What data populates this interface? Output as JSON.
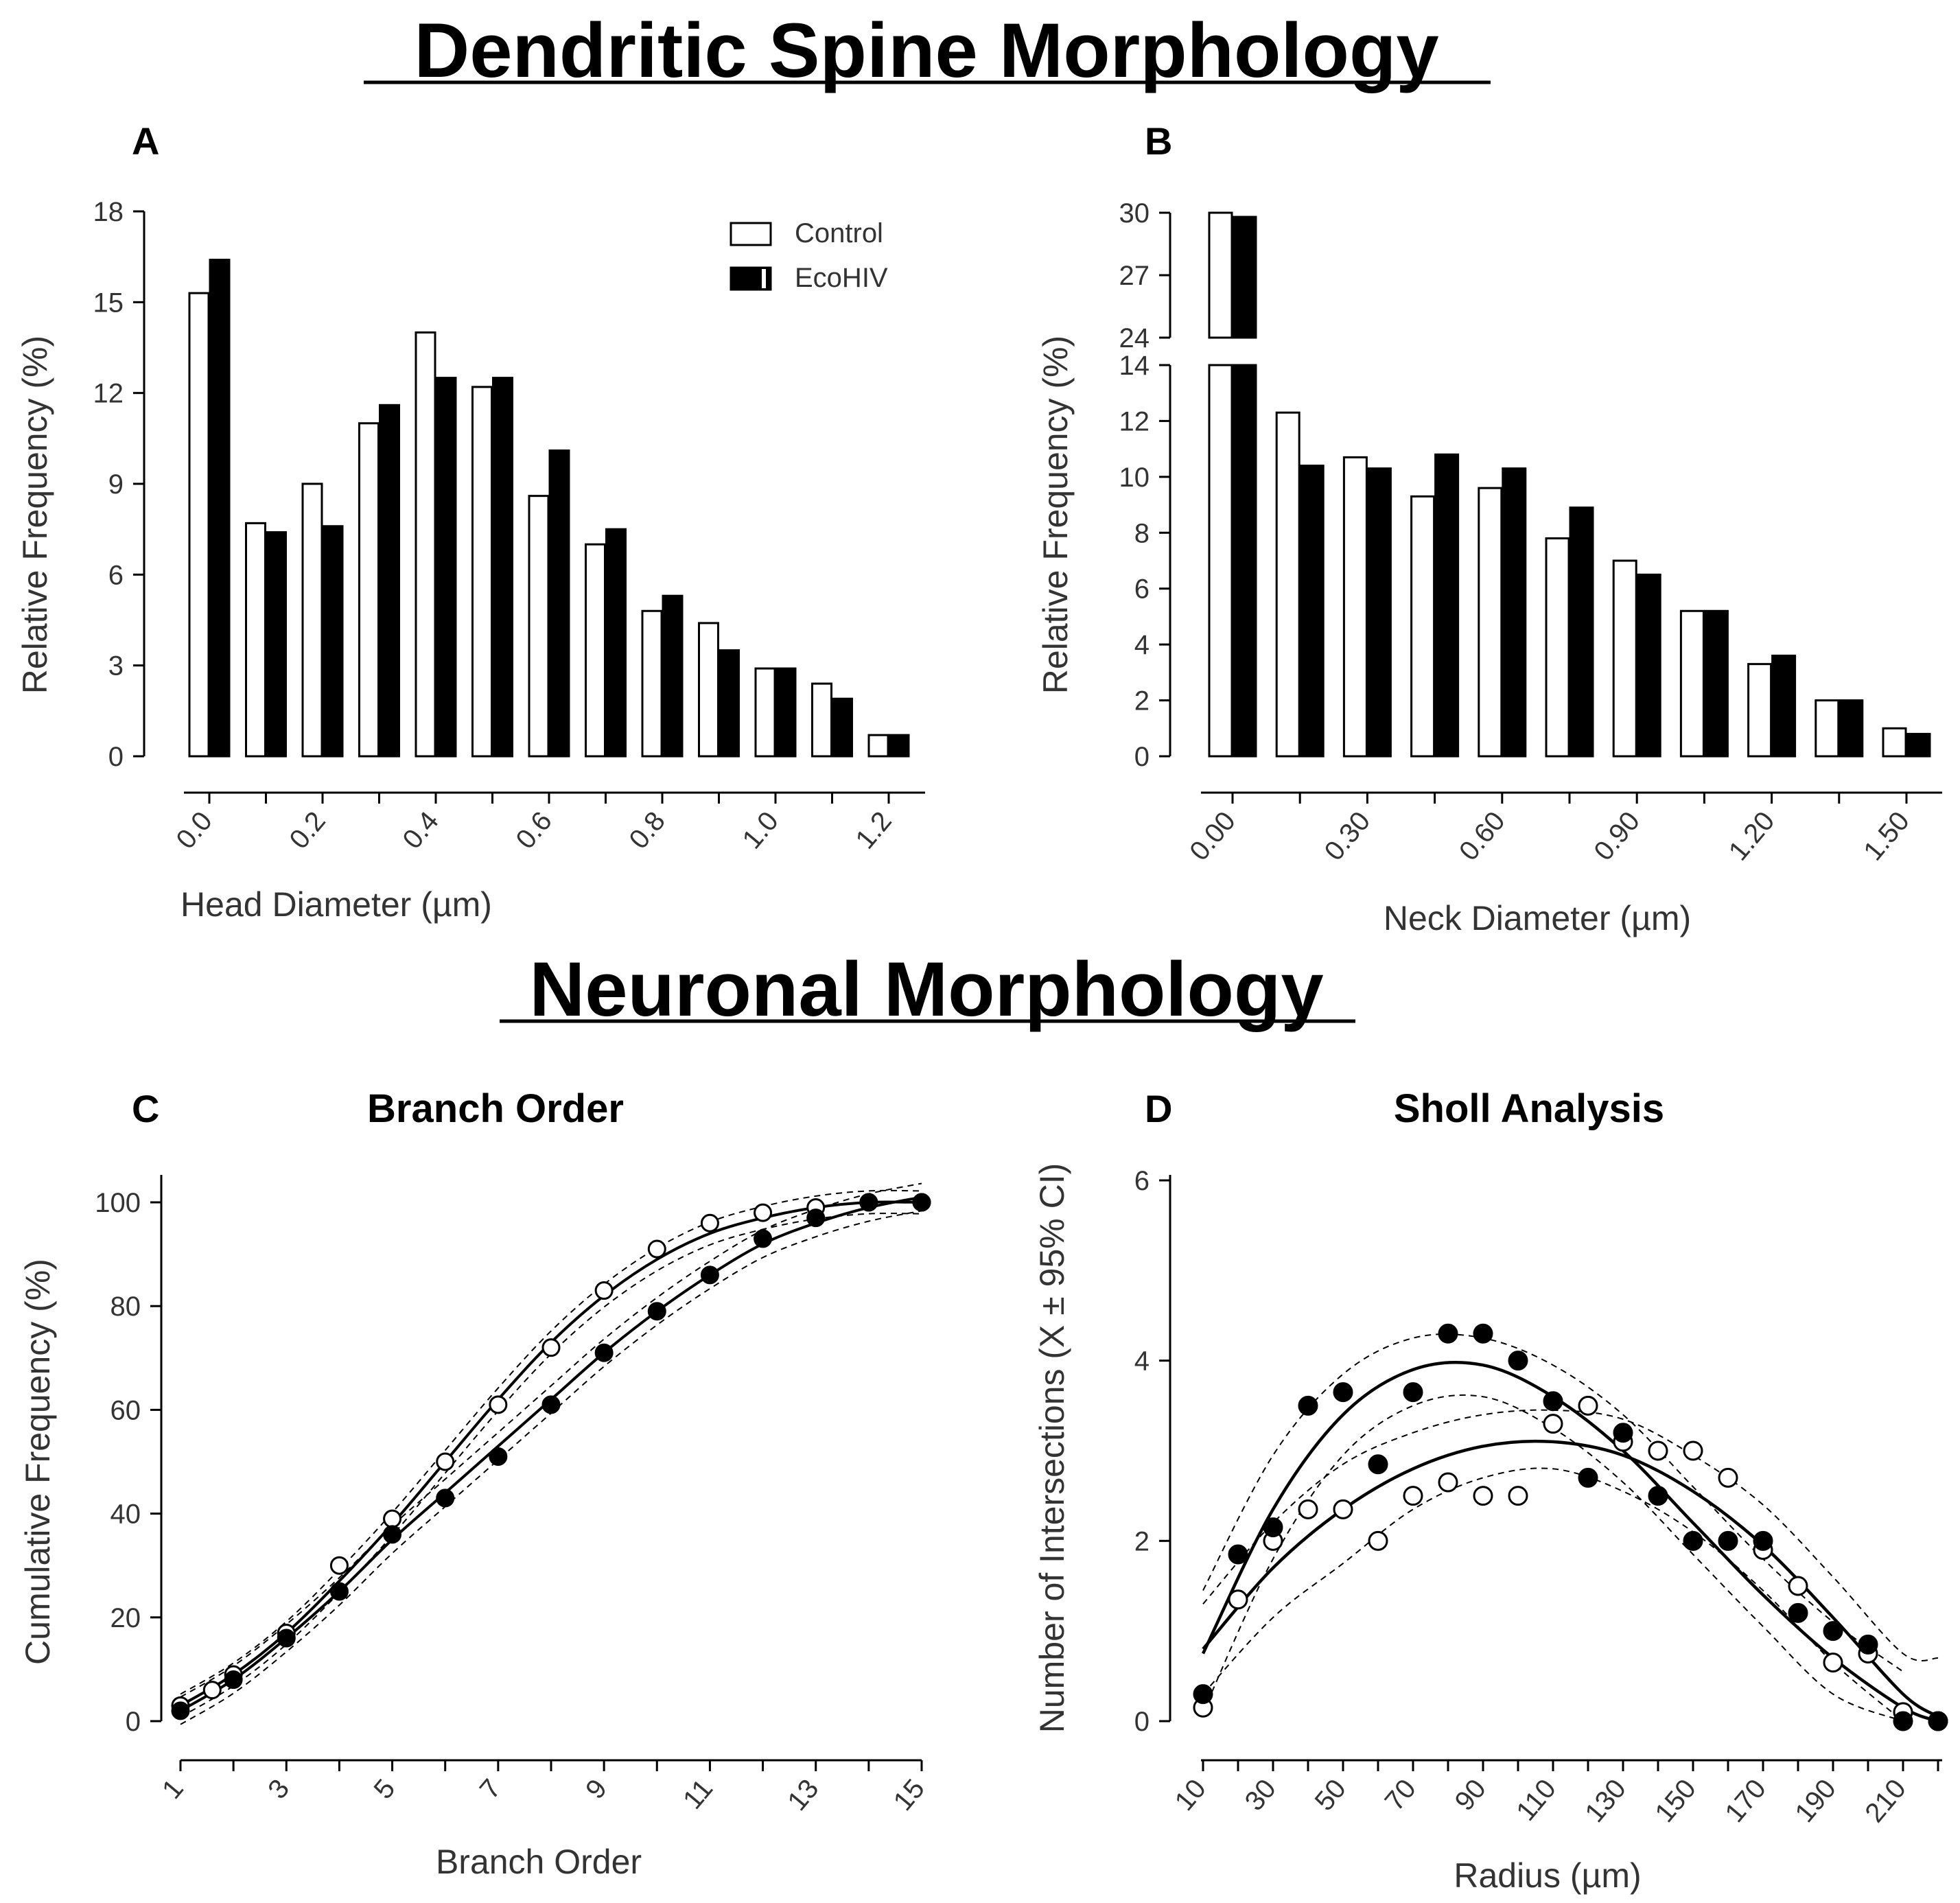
{
  "titles": {
    "spine": "Dendritic  Spine  Morphology",
    "neuronal": "Neuronal  Morphology"
  },
  "legend": {
    "control": "Control",
    "ecohiv": "EcoHIV"
  },
  "colors": {
    "control_fill": "#ffffff",
    "ecohiv_fill": "#000000",
    "stroke": "#000000"
  },
  "chart_data": [
    {
      "id": "A",
      "type": "bar",
      "letter": "A",
      "xlabel": "Head Diameter (µm)",
      "ylabel": "Relative  Frequency (%)",
      "ylim": [
        0,
        18
      ],
      "yticks": [
        0,
        3,
        6,
        9,
        12,
        15,
        18
      ],
      "categories": [
        "0.0",
        "0.1",
        "0.2",
        "0.3",
        "0.4",
        "0.5",
        "0.6",
        "0.7",
        "0.8",
        "0.9",
        "1.0",
        "1.1",
        "1.2"
      ],
      "xtick_labels": [
        "0.0",
        "",
        "0.2",
        "",
        "0.4",
        "",
        "0.6",
        "",
        "0.8",
        "",
        "1.0",
        "",
        "1.2"
      ],
      "series": [
        {
          "name": "Control",
          "values": [
            15.3,
            7.7,
            9.0,
            11.0,
            14.0,
            12.2,
            8.6,
            7.0,
            4.8,
            4.4,
            2.9,
            2.4,
            0.7
          ]
        },
        {
          "name": "EcoHIV",
          "values": [
            16.4,
            7.4,
            7.6,
            11.6,
            12.5,
            12.5,
            10.1,
            7.5,
            5.3,
            3.5,
            2.9,
            1.9,
            0.7
          ]
        }
      ]
    },
    {
      "id": "B",
      "type": "bar",
      "letter": "B",
      "xlabel": "Neck  Diameter  (µm)",
      "ylabel": "Relative  Frequency  (%)",
      "ylim_lower": [
        0,
        14
      ],
      "ylim_upper": [
        24,
        30
      ],
      "yticks_lower": [
        0,
        2,
        4,
        6,
        8,
        10,
        12,
        14
      ],
      "yticks_upper": [
        24,
        27,
        30
      ],
      "categories": [
        "0.00",
        "0.15",
        "0.30",
        "0.45",
        "0.60",
        "0.75",
        "0.90",
        "1.05",
        "1.20",
        "1.35",
        "1.50"
      ],
      "xtick_labels": [
        "0.00",
        "",
        "0.30",
        "",
        "0.60",
        "",
        "0.90",
        "",
        "1.20",
        "",
        "1.50"
      ],
      "series": [
        {
          "name": "Control",
          "values": [
            30.0,
            12.3,
            10.7,
            9.3,
            9.6,
            7.8,
            7.0,
            5.2,
            3.3,
            2.0,
            1.0
          ]
        },
        {
          "name": "EcoHIV",
          "values": [
            29.8,
            10.4,
            10.3,
            10.8,
            10.3,
            8.9,
            6.5,
            5.2,
            3.6,
            2.0,
            0.8
          ]
        }
      ]
    },
    {
      "id": "C",
      "type": "scatter",
      "letter": "C",
      "title": "Branch Order",
      "xlabel": "Branch  Order",
      "ylabel": "Cumulative Frequency (%)",
      "xlim": [
        1,
        15
      ],
      "ylim": [
        0,
        100
      ],
      "xticks": [
        1,
        3,
        5,
        7,
        9,
        11,
        13,
        15
      ],
      "yticks": [
        0,
        20,
        40,
        60,
        80,
        100
      ],
      "series": [
        {
          "name": "Control",
          "marker": "open",
          "x": [
            1,
            1.6,
            2,
            3,
            4,
            5,
            6,
            7,
            8,
            9,
            10,
            11,
            12,
            13,
            14,
            15
          ],
          "y": [
            3,
            6,
            9,
            17,
            30,
            39,
            50,
            61,
            72,
            83,
            91,
            96,
            98,
            99,
            100,
            100
          ]
        },
        {
          "name": "EcoHIV",
          "marker": "filled",
          "x": [
            1,
            2,
            3,
            4,
            5,
            6,
            7,
            8,
            9,
            10,
            11,
            12,
            13,
            14,
            15
          ],
          "y": [
            2,
            8,
            16,
            25,
            36,
            43,
            51,
            61,
            71,
            79,
            86,
            93,
            97,
            100,
            100
          ]
        }
      ],
      "fits": [
        {
          "name": "Control fit",
          "x": [
            1,
            2,
            3,
            4,
            5,
            6,
            7,
            8,
            9,
            10,
            11,
            12,
            13,
            14,
            15
          ],
          "y": [
            3,
            9,
            17,
            27,
            38,
            50,
            62,
            73,
            82,
            89,
            94,
            97,
            99,
            100,
            100
          ]
        },
        {
          "name": "EcoHIV fit",
          "x": [
            1,
            2,
            3,
            4,
            5,
            6,
            7,
            8,
            9,
            10,
            11,
            12,
            13,
            14,
            15
          ],
          "y": [
            2,
            8,
            16,
            25,
            35,
            44,
            53,
            62,
            71,
            79,
            86,
            92,
            96,
            99,
            101
          ]
        }
      ]
    },
    {
      "id": "D",
      "type": "scatter",
      "letter": "D",
      "title": "Sholl  Analysis",
      "xlabel": "Radius (µm)",
      "ylabel": "Number of Intersections (X ± 95% CI)",
      "xlim": [
        10,
        220
      ],
      "ylim": [
        0,
        6
      ],
      "xticks": [
        10,
        30,
        50,
        70,
        90,
        110,
        130,
        150,
        170,
        190,
        210
      ],
      "yticks": [
        0,
        2,
        4,
        6
      ],
      "series": [
        {
          "name": "Control",
          "marker": "open",
          "x": [
            10,
            20,
            30,
            40,
            50,
            60,
            70,
            80,
            90,
            100,
            110,
            120,
            130,
            140,
            150,
            160,
            170,
            180,
            190,
            200,
            210,
            220
          ],
          "y": [
            0.15,
            1.35,
            2.0,
            2.35,
            2.35,
            2.0,
            2.5,
            2.65,
            2.5,
            2.5,
            3.3,
            3.5,
            3.1,
            3.0,
            3.0,
            2.7,
            1.9,
            1.5,
            0.65,
            0.75,
            0.1,
            0.0
          ]
        },
        {
          "name": "EcoHIV",
          "marker": "filled",
          "x": [
            10,
            20,
            30,
            40,
            50,
            60,
            70,
            80,
            90,
            100,
            110,
            120,
            130,
            140,
            150,
            160,
            170,
            180,
            190,
            200,
            210,
            220
          ],
          "y": [
            0.3,
            1.85,
            2.15,
            3.5,
            3.65,
            2.85,
            3.65,
            4.3,
            4.3,
            4.0,
            3.55,
            2.7,
            3.2,
            2.5,
            2.0,
            2.0,
            2.0,
            1.2,
            1.0,
            0.85,
            0.0,
            0.0
          ]
        }
      ],
      "fits": [
        {
          "name": "EcoHIV fit",
          "x": [
            10,
            30,
            50,
            70,
            90,
            110,
            130,
            150,
            170,
            190,
            210,
            220
          ],
          "y": [
            0.75,
            2.35,
            3.4,
            3.9,
            3.95,
            3.6,
            3.0,
            2.2,
            1.4,
            0.7,
            0.15,
            0.0
          ]
        },
        {
          "name": "Control fit",
          "x": [
            10,
            30,
            50,
            70,
            90,
            110,
            130,
            150,
            170,
            190,
            210,
            220
          ],
          "y": [
            0.8,
            1.7,
            2.35,
            2.8,
            3.05,
            3.1,
            2.95,
            2.55,
            1.95,
            1.15,
            0.3,
            0.05
          ]
        }
      ],
      "ci_bands": [
        {
          "name": "EcoHIV CI upper",
          "x": [
            10,
            30,
            50,
            70,
            90,
            110,
            130,
            150,
            170,
            190,
            210
          ],
          "y": [
            1.45,
            2.95,
            3.85,
            4.25,
            4.25,
            3.95,
            3.4,
            2.6,
            1.8,
            1.1,
            0.55
          ]
        },
        {
          "name": "EcoHIV CI lower",
          "x": [
            10,
            30,
            50,
            70,
            90,
            110,
            130,
            150,
            170,
            190,
            210
          ],
          "y": [
            0.1,
            1.8,
            2.95,
            3.5,
            3.6,
            3.25,
            2.65,
            1.85,
            1.05,
            0.3,
            0.0
          ]
        },
        {
          "name": "Control CI upper",
          "x": [
            10,
            30,
            50,
            70,
            90,
            110,
            130,
            150,
            170,
            190,
            210,
            220
          ],
          "y": [
            1.3,
            2.2,
            2.85,
            3.2,
            3.4,
            3.45,
            3.35,
            2.95,
            2.4,
            1.6,
            0.75,
            0.7
          ]
        },
        {
          "name": "Control CI lower",
          "x": [
            10,
            30,
            50,
            70,
            90,
            110,
            130,
            150,
            170,
            190,
            210
          ],
          "y": [
            0.3,
            1.15,
            1.75,
            2.35,
            2.7,
            2.8,
            2.55,
            2.1,
            1.45,
            0.65,
            0.0
          ]
        }
      ]
    }
  ]
}
